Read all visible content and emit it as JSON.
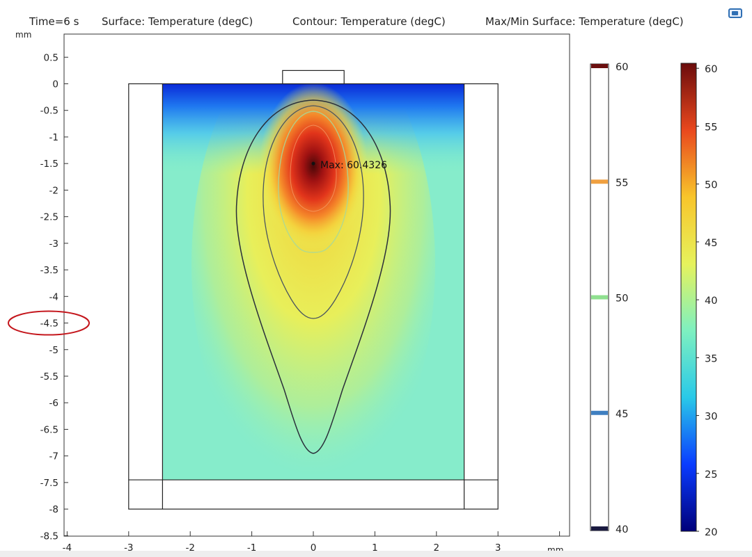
{
  "header": {
    "time": "Time=6 s",
    "surface": "Surface: Temperature (degC)",
    "contour": "Contour: Temperature (degC)",
    "maxmin": "Max/Min Surface: Temperature (degC)"
  },
  "axis_units": {
    "x": "mm",
    "y": "mm"
  },
  "chart_data": {
    "type": "heatmap",
    "title": "Time=6 s   Surface: Temperature (degC)   Contour: Temperature (degC)   Max/Min Surface: Temperature (degC)",
    "xlabel": "mm",
    "ylabel": "mm",
    "xlim": [
      -4,
      4
    ],
    "ylim": [
      -8.5,
      0.85
    ],
    "x_ticks": [
      -4,
      -3,
      -2,
      -1,
      0,
      1,
      2,
      3
    ],
    "y_ticks": [
      0.5,
      0,
      -0.5,
      -1,
      -1.5,
      -2,
      -2.5,
      -3,
      -3.5,
      -4,
      -4.5,
      -5,
      -5.5,
      -6,
      -6.5,
      -7,
      -7.5,
      -8,
      -8.5
    ],
    "highlighted_y_tick": -4.5,
    "max_annotation": {
      "label": "Max: 60.4326",
      "x": 0,
      "y": -1.5,
      "value": 60.4326
    },
    "geometry": {
      "outer_block": {
        "x": [
          -3,
          3
        ],
        "y": [
          -8,
          0
        ]
      },
      "heated_domain": {
        "x": [
          -2.45,
          2.45
        ],
        "y": [
          -7.45,
          0
        ]
      },
      "top_pad": {
        "x": [
          -0.5,
          0.5
        ],
        "y": [
          0,
          0.25
        ]
      },
      "bottom_line_y": -7.45
    },
    "contour_levels": [
      {
        "value": 40,
        "color": "#1a1a40"
      },
      {
        "value": 45,
        "color": "#3f7fc0"
      },
      {
        "value": 50,
        "color": "#8fe08f"
      },
      {
        "value": 55,
        "color": "#f0a040"
      },
      {
        "value": 60,
        "color": "#6a0f0f"
      }
    ],
    "contour_colorbar": {
      "ticks": [
        60,
        55,
        50,
        45,
        40
      ],
      "min": 40,
      "max": 60
    },
    "surface_colorbar": {
      "ticks": [
        60,
        55,
        50,
        45,
        40,
        35,
        30,
        25,
        20
      ],
      "min": 20,
      "max": 60.4326,
      "colormap": "rainbow",
      "stops": [
        "#00007a",
        "#0a3cff",
        "#29c9e8",
        "#7ef0c0",
        "#e6f25c",
        "#f8c52b",
        "#e9481e",
        "#6b0c0c"
      ]
    }
  }
}
